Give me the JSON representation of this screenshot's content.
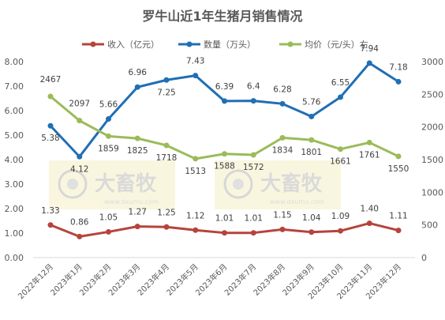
{
  "chart_data": {
    "type": "line",
    "title": "罗牛山近1年生猪月销售情况",
    "categories": [
      "2022年12月",
      "2023年1月",
      "2023年2月",
      "2023年3月",
      "2023年4月",
      "2023年5月",
      "2023年6月",
      "2023年7月",
      "2023年8月",
      "2023年9月",
      "2023年10月",
      "2023年11月",
      "2023年12月"
    ],
    "series": [
      {
        "name": "收入（亿元）",
        "axis": "left",
        "color": "#b5443d",
        "values": [
          1.33,
          0.86,
          1.05,
          1.27,
          1.25,
          1.12,
          1.01,
          1.01,
          1.15,
          1.04,
          1.09,
          1.4,
          1.11
        ],
        "labels": [
          "1.33",
          "0.86",
          "1.05",
          "1.27",
          "1.25",
          "1.12",
          "1.01",
          "1.01",
          "1.15",
          "1.04",
          "1.09",
          "1.40",
          "1.11"
        ]
      },
      {
        "name": "数量（万头）",
        "axis": "left",
        "color": "#1f6fb4",
        "values": [
          5.38,
          4.12,
          5.66,
          6.96,
          7.25,
          7.43,
          6.39,
          6.4,
          6.28,
          5.76,
          6.55,
          7.94,
          7.18
        ],
        "labels": [
          "5.38",
          "4.12",
          "5.66",
          "6.96",
          "7.25",
          "7.43",
          "6.39",
          "6.4",
          "6.28",
          "5.76",
          "6.55",
          "7.94",
          "7.18"
        ]
      },
      {
        "name": "均价（元/头）右",
        "axis": "right",
        "color": "#9bbb59",
        "values": [
          2467,
          2097,
          1859,
          1825,
          1718,
          1513,
          1588,
          1572,
          1834,
          1801,
          1661,
          1761,
          1550
        ],
        "labels": [
          "2467",
          "2097",
          "1859",
          "1825",
          "1718",
          "1513",
          "1588",
          "1572",
          "1834",
          "1801",
          "1661",
          "1761",
          "1550"
        ]
      }
    ],
    "y_left": {
      "min": 0,
      "max": 8,
      "ticks": [
        "0.00",
        "1.00",
        "2.00",
        "3.00",
        "4.00",
        "5.00",
        "6.00",
        "7.00",
        "8.00"
      ]
    },
    "y_right": {
      "min": 0,
      "max": 3000,
      "ticks": [
        "0",
        "500",
        "1000",
        "1500",
        "2000",
        "2500",
        "3000"
      ]
    },
    "legend_position": "top",
    "grid": false
  },
  "watermark": {
    "brand": "大畜牧",
    "url": "www.dxumu.com"
  }
}
